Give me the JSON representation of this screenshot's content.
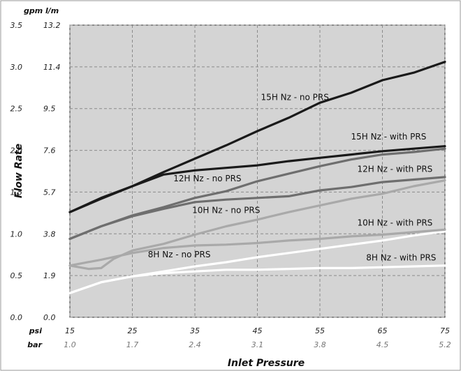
{
  "chart_data": {
    "type": "line",
    "xlabel": "Inlet Pressure",
    "ylabel": "Flow Rate",
    "x_unit_primary": "psi",
    "x_unit_secondary": "bar",
    "y_unit_primary": "gpm",
    "y_unit_secondary": "l/m",
    "x_ticks": [
      15,
      25,
      35,
      45,
      55,
      65,
      75
    ],
    "x_ticks_secondary": [
      "1.0",
      "1.7",
      "2.4",
      "3.1",
      "3.8",
      "4.5",
      "5.2"
    ],
    "y_ticks": [
      "0.0",
      "0.5",
      "1.0",
      "1.5",
      "2.0",
      "2.5",
      "3.0",
      "3.5"
    ],
    "y_ticks_secondary": [
      "0.0",
      "1.9",
      "3.8",
      "5.7",
      "7.6",
      "9.5",
      "11.4",
      "13.2"
    ],
    "xlim": [
      15,
      75
    ],
    "ylim": [
      0,
      3.5
    ],
    "grid": true,
    "colors": {
      "background": "#d4d4d4",
      "black": "#1a1a1a",
      "gray_dark": "#6e6e6e",
      "gray_light": "#a9a9a9",
      "white": "#ffffff"
    },
    "series": [
      {
        "name": "15H Nz - no PRS",
        "color": "#1a1a1a",
        "x": [
          15,
          20,
          25,
          30,
          35,
          40,
          45,
          50,
          55,
          60,
          65,
          70,
          75
        ],
        "y": [
          1.26,
          1.43,
          1.57,
          1.74,
          1.9,
          2.06,
          2.23,
          2.39,
          2.57,
          2.69,
          2.84,
          2.93,
          3.06
        ]
      },
      {
        "name": "15H Nz - with PRS",
        "color": "#1a1a1a",
        "x": [
          15,
          20,
          25,
          30,
          35,
          40,
          45,
          50,
          55,
          60,
          65,
          70,
          75
        ],
        "y": [
          1.26,
          1.42,
          1.57,
          1.71,
          1.76,
          1.79,
          1.82,
          1.87,
          1.91,
          1.95,
          1.99,
          2.02,
          2.05
        ]
      },
      {
        "name": "12H Nz - no PRS",
        "color": "#6e6e6e",
        "x": [
          15,
          20,
          25,
          30,
          35,
          40,
          45,
          50,
          55,
          60,
          65,
          70,
          75
        ],
        "y": [
          0.94,
          1.09,
          1.22,
          1.32,
          1.43,
          1.51,
          1.63,
          1.72,
          1.81,
          1.89,
          1.95,
          1.98,
          2.02
        ]
      },
      {
        "name": "12H Nz - with PRS",
        "color": "#6e6e6e",
        "x": [
          15,
          20,
          25,
          30,
          35,
          40,
          45,
          50,
          55,
          60,
          65,
          70,
          75
        ],
        "y": [
          0.94,
          1.09,
          1.21,
          1.3,
          1.38,
          1.41,
          1.43,
          1.45,
          1.52,
          1.56,
          1.62,
          1.65,
          1.68
        ]
      },
      {
        "name": "10H Nz - no PRS",
        "color": "#a9a9a9",
        "x": [
          15,
          18,
          20,
          22,
          25,
          30,
          35,
          40,
          45,
          50,
          55,
          60,
          65,
          70,
          75
        ],
        "y": [
          0.62,
          0.58,
          0.59,
          0.7,
          0.8,
          0.88,
          0.99,
          1.09,
          1.17,
          1.26,
          1.34,
          1.42,
          1.48,
          1.57,
          1.64
        ]
      },
      {
        "name": "10H Nz - with PRS",
        "color": "#a9a9a9",
        "x": [
          15,
          20,
          25,
          30,
          35,
          40,
          45,
          50,
          55,
          60,
          65,
          70,
          75
        ],
        "y": [
          0.62,
          0.69,
          0.77,
          0.83,
          0.86,
          0.87,
          0.89,
          0.92,
          0.94,
          0.97,
          0.99,
          1.02,
          1.05
        ]
      },
      {
        "name": "8H Nz - no PRS",
        "color": "#ffffff",
        "x": [
          15,
          20,
          25,
          30,
          35,
          40,
          45,
          50,
          55,
          60,
          65,
          70,
          75
        ],
        "y": [
          0.29,
          0.42,
          0.49,
          0.55,
          0.61,
          0.66,
          0.72,
          0.77,
          0.82,
          0.87,
          0.92,
          0.98,
          1.03
        ]
      },
      {
        "name": "8H Nz - with PRS",
        "color": "#ffffff",
        "x": [
          15,
          20,
          25,
          30,
          35,
          40,
          45,
          50,
          55,
          60,
          65,
          70,
          75
        ],
        "y": [
          0.29,
          0.42,
          0.49,
          0.53,
          0.55,
          0.57,
          0.57,
          0.58,
          0.59,
          0.59,
          0.6,
          0.61,
          0.62
        ]
      }
    ],
    "series_labels": [
      {
        "name": "15H Nz - no PRS",
        "x": 51,
        "y": 2.6
      },
      {
        "name": "15H Nz - with PRS",
        "x": 66,
        "y": 2.13
      },
      {
        "name": "12H Nz - no PRS",
        "x": 37,
        "y": 1.63
      },
      {
        "name": "12H Nz - with PRS",
        "x": 67,
        "y": 1.74
      },
      {
        "name": "10H Nz - no PRS",
        "x": 40,
        "y": 1.25
      },
      {
        "name": "10H Nz - with PRS",
        "x": 67,
        "y": 1.1
      },
      {
        "name": "8H Nz - no PRS",
        "x": 32.5,
        "y": 0.72
      },
      {
        "name": "8H Nz - with PRS",
        "x": 68,
        "y": 0.68
      }
    ]
  }
}
